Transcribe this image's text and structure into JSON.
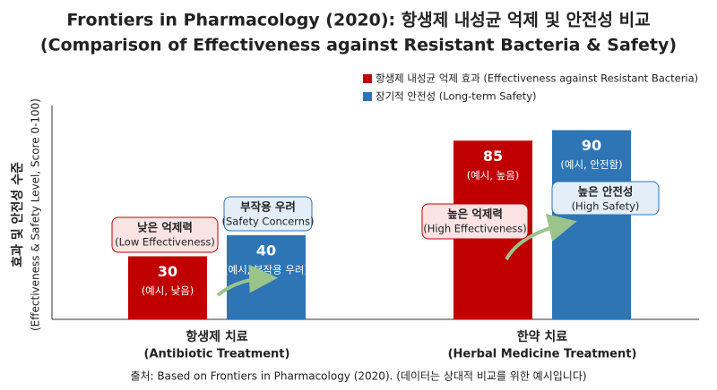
{
  "chart_data": {
    "type": "bar",
    "title": "Frontiers in Pharmacology (2020): 항생제 내성균 억제 및 안전성 비교",
    "subtitle": "(Comparison of Effectiveness against Resistant Bacteria & Safety)",
    "y_label": "효과 및 안전성 수준",
    "y_label_note": "(Effectiveness & Safety Level, Score 0-100)",
    "categories": [
      "항생제 치료",
      "한약 치료"
    ],
    "category_notes": [
      "(Antibiotic Treatment)",
      "(Herbal Medicine Treatment)"
    ],
    "series": [
      {
        "name": "항생제 내성균 억제 효과 (Effectiveness against Resistant Bacteria)",
        "color": "#c00000",
        "values": [
          30,
          85
        ],
        "value_notes": [
          "(예시, 낮음)",
          "(예시, 높음)"
        ]
      },
      {
        "name": "장기적 안전성 (Long-term Safety)",
        "color": "#2e75b6",
        "values": [
          40,
          90
        ],
        "value_notes": [
          "(예시, 부작용 우려)",
          "(예시, 안전함)"
        ]
      }
    ],
    "annotations": [
      {
        "text": "낮은 억제력",
        "subtext": "(Low Effectiveness)"
      },
      {
        "text": "부작용 우려",
        "subtext": "(Safety Concerns)"
      },
      {
        "text": "높은 억제력",
        "subtext": "(High Effectiveness)"
      },
      {
        "text": "높은 안전성",
        "subtext": "(High Safety)"
      }
    ],
    "ylim": [
      0,
      100
    ],
    "legend": "upper right",
    "source": "출처: Based on Frontiers in Pharmacology (2020). (데이터는 상대적 비교를 위한 예시입니다)"
  }
}
